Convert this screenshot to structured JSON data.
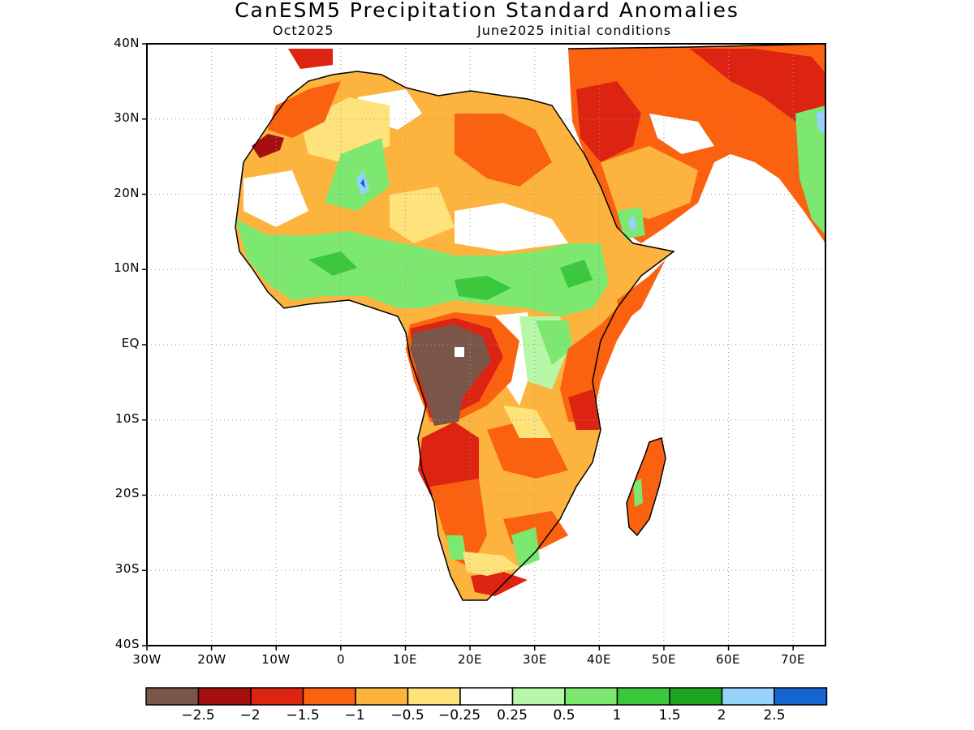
{
  "title": "CanESM5 Precipitation Standard Anomalies",
  "subtitle_left": "Oct2025",
  "subtitle_right": "June2025 initial conditions",
  "axes": {
    "y_ticks": [
      "40N",
      "30N",
      "20N",
      "10N",
      "EQ",
      "10S",
      "20S",
      "30S",
      "40S"
    ],
    "x_ticks": [
      "30W",
      "20W",
      "10W",
      "0",
      "10E",
      "20E",
      "30E",
      "40E",
      "50E",
      "60E",
      "70E"
    ],
    "lat_range": [
      -40,
      40
    ],
    "lon_range": [
      -30,
      75
    ],
    "grid": "dotted"
  },
  "colorbar": {
    "colors": [
      "#7a5648",
      "#a50f0f",
      "#dd2412",
      "#fa6210",
      "#fdb43e",
      "#fee27c",
      "#ffffff",
      "#b6f7a8",
      "#7ce870",
      "#3cc83c",
      "#1ea51e",
      "#96d2fa",
      "#1464d2"
    ],
    "labels": [
      "-2.5",
      "-2",
      "-1.5",
      "-1",
      "-0.5",
      "-0.25",
      "0.25",
      "0.5",
      "1",
      "1.5",
      "2",
      "2.5"
    ]
  },
  "chart_data": {
    "type": "heatmap",
    "title": "CanESM5 Precipitation Standard Anomalies",
    "period": "Oct2025",
    "initial_conditions": "June2025 initial conditions",
    "lat_range": [
      -40,
      40
    ],
    "lon_range": [
      -30,
      75
    ],
    "levels": [
      -2.5,
      -2,
      -1.5,
      -1,
      -0.5,
      -0.25,
      0.25,
      0.5,
      1,
      1.5,
      2,
      2.5
    ],
    "regions": [
      {
        "region": "Congo Basin / Gabon / N Angola",
        "anomaly": "< -2.5"
      },
      {
        "region": "Angola / Zambia west",
        "anomaly": "-2 to -1.5"
      },
      {
        "region": "Middle East / Iran",
        "anomaly": "-1.5 to -1"
      },
      {
        "region": "Egypt / Sudan / Libya",
        "anomaly": "-1 to -0.5"
      },
      {
        "region": "Sahel / Central Africa band",
        "anomaly": "0.5 to 1.5"
      },
      {
        "region": "Western Sahara coast",
        "anomaly": "-2 to -1.5"
      },
      {
        "region": "Southern Africa",
        "anomaly": "-1 to -0.5"
      }
    ]
  }
}
